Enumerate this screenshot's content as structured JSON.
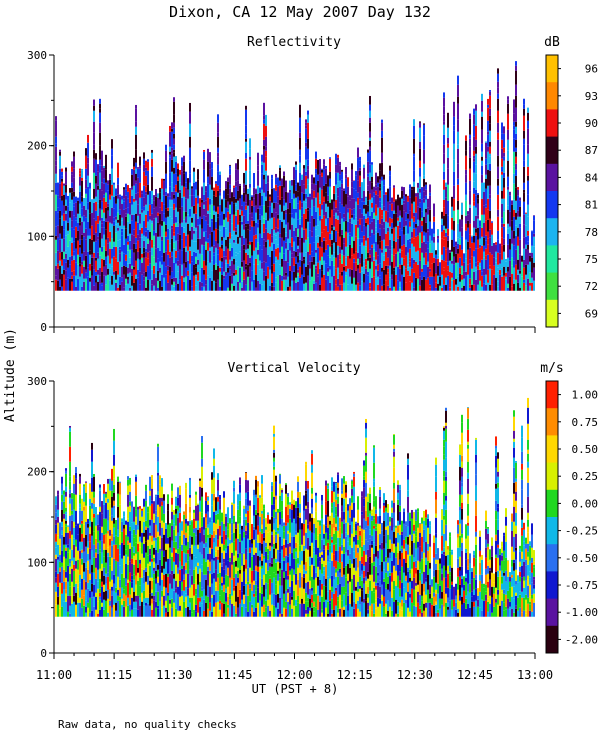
{
  "chart_data": {
    "title": "Dixon, CA 12 May 2007  Day 132",
    "ylabel": "Altitude (m)",
    "xlabel": "UT  (PST + 8)",
    "footnote": "Raw data, no quality checks",
    "x_ticks": [
      "11:00",
      "11:15",
      "11:30",
      "11:45",
      "12:00",
      "12:15",
      "12:30",
      "12:45",
      "13:00"
    ],
    "x_range_minutes": [
      0,
      120
    ],
    "panels": [
      {
        "type": "heatmap",
        "title": "Reflectivity",
        "ylim": [
          0,
          300
        ],
        "y_ticks": [
          "0",
          "100",
          "200",
          "300"
        ],
        "colorbar_unit": "dB",
        "colorbar_labels": [
          "96",
          "93",
          "90",
          "87",
          "84",
          "81",
          "78",
          "75",
          "72",
          "69"
        ],
        "colorbar_colors": [
          "#ffc000",
          "#ff8800",
          "#ee1010",
          "#300018",
          "#5a12a0",
          "#1438f0",
          "#1cb4f0",
          "#20e8a0",
          "#40e040",
          "#d8ff20"
        ],
        "data_floor_m": 40,
        "data_top_m": 300
      },
      {
        "type": "heatmap",
        "title": "Vertical Velocity",
        "ylim": [
          0,
          300
        ],
        "y_ticks": [
          "0",
          "100",
          "200",
          "300"
        ],
        "colorbar_unit": "m/s",
        "colorbar_labels": [
          "1.00",
          "0.75",
          "0.50",
          "0.25",
          "0.00",
          "-0.25",
          "-0.50",
          "-0.75",
          "-1.00",
          "-2.00"
        ],
        "colorbar_colors": [
          "#ff2000",
          "#ff8c00",
          "#ffd800",
          "#d8f000",
          "#20d820",
          "#10b8e8",
          "#2a70f0",
          "#1018d0",
          "#5a12a0",
          "#2a0010"
        ],
        "data_floor_m": 40,
        "data_top_m": 300
      }
    ]
  }
}
